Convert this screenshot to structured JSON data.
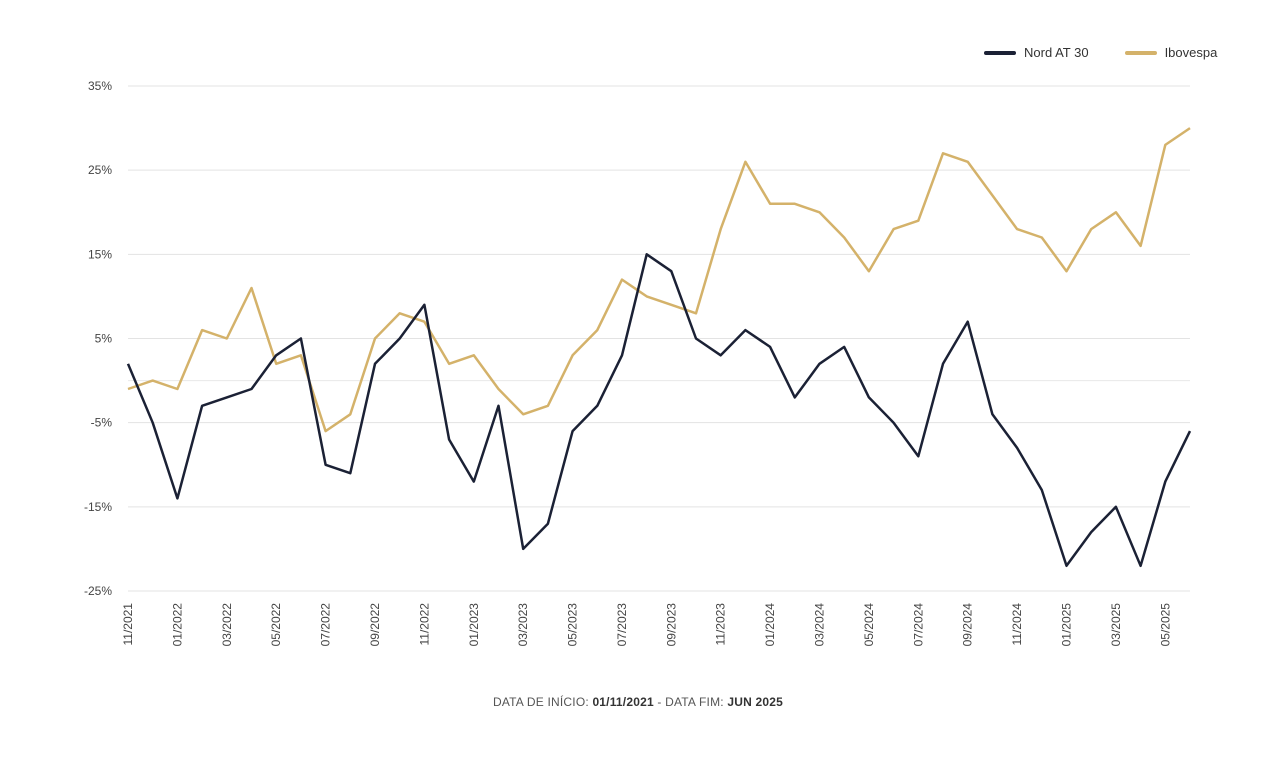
{
  "chart_data": {
    "type": "line",
    "title": "",
    "xlabel": "",
    "ylabel": "",
    "x_range": [
      "11/2021",
      "06/2025"
    ],
    "ylim": [
      -25,
      35
    ],
    "y_ticks": [
      "35%",
      "25%",
      "15%",
      "5%",
      "-5%",
      "-15%",
      "-25%"
    ],
    "y_tick_values": [
      35,
      25,
      15,
      5,
      -5,
      -15,
      -25
    ],
    "x_ticks": [
      "11/2021",
      "01/2022",
      "03/2022",
      "05/2022",
      "07/2022",
      "09/2022",
      "11/2022",
      "01/2023",
      "03/2023",
      "05/2023",
      "07/2023",
      "09/2023",
      "11/2023",
      "01/2024",
      "03/2024",
      "05/2024",
      "07/2024",
      "09/2024",
      "11/2024",
      "01/2025",
      "03/2025",
      "05/2025"
    ],
    "grid": "horizontal",
    "legend_position": "top-right",
    "x": [
      "11/2021",
      "12/2021",
      "01/2022",
      "02/2022",
      "03/2022",
      "04/2022",
      "05/2022",
      "06/2022",
      "07/2022",
      "08/2022",
      "09/2022",
      "10/2022",
      "11/2022",
      "12/2022",
      "01/2023",
      "02/2023",
      "03/2023",
      "04/2023",
      "05/2023",
      "06/2023",
      "07/2023",
      "08/2023",
      "09/2023",
      "10/2023",
      "11/2023",
      "12/2023",
      "01/2024",
      "02/2024",
      "03/2024",
      "04/2024",
      "05/2024",
      "06/2024",
      "07/2024",
      "08/2024",
      "09/2024",
      "10/2024",
      "11/2024",
      "12/2024",
      "01/2025",
      "02/2025",
      "03/2025",
      "04/2025",
      "05/2025",
      "06/2025"
    ],
    "series": [
      {
        "name": "Nord AT 30",
        "color": "#1b2135",
        "values": [
          2,
          -5,
          -14,
          -3,
          -2,
          -1,
          3,
          5,
          -10,
          -11,
          2,
          5,
          9,
          -7,
          -12,
          -3,
          -20,
          -17,
          -6,
          -3,
          3,
          15,
          13,
          5,
          3,
          6,
          4,
          -2,
          2,
          4,
          -2,
          -5,
          -9,
          2,
          7,
          -4,
          -8,
          -13,
          -22,
          -18,
          -15,
          -22,
          -12,
          -6
        ]
      },
      {
        "name": "Ibovespa",
        "color": "#d4b26a",
        "values": [
          -1,
          0,
          -1,
          6,
          5,
          11,
          2,
          3,
          -6,
          -4,
          5,
          8,
          7,
          2,
          3,
          -1,
          -4,
          -3,
          3,
          6,
          12,
          10,
          9,
          8,
          18,
          26,
          21,
          21,
          20,
          17,
          13,
          18,
          19,
          27,
          26,
          22,
          18,
          17,
          13,
          18,
          20,
          16,
          28,
          30
        ]
      }
    ]
  },
  "legend": {
    "items": [
      {
        "label": "Nord AT 30",
        "color": "#1b2135"
      },
      {
        "label": "Ibovespa",
        "color": "#d4b26a"
      }
    ]
  },
  "footer": {
    "start_prefix": "DATA DE INÍCIO:",
    "start_value": "01/11/2021",
    "separator": " - ",
    "end_prefix": "DATA FIM:",
    "end_value": "JUN 2025"
  }
}
